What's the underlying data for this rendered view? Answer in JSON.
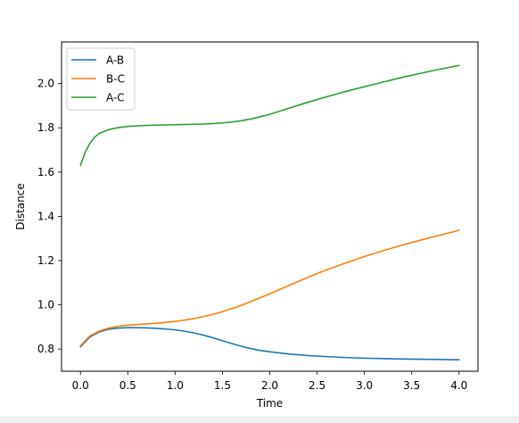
{
  "chart_data": {
    "type": "line",
    "title": "",
    "xlabel": "Time",
    "ylabel": "Distance",
    "xlim": [
      -0.2,
      4.2
    ],
    "ylim": [
      0.7,
      2.188
    ],
    "xticks": [
      "0.0",
      "0.5",
      "1.0",
      "1.5",
      "2.0",
      "2.5",
      "3.0",
      "3.5",
      "4.0"
    ],
    "yticks": [
      "0.8",
      "1.0",
      "1.2",
      "1.4",
      "1.6",
      "1.8",
      "2.0"
    ],
    "grid": false,
    "legend_position": "upper-left",
    "series": [
      {
        "name": "A-B",
        "color": "#1f77b4",
        "x": [
          0.0,
          0.1,
          0.2,
          0.3,
          0.4,
          0.5,
          0.6,
          0.7,
          0.8,
          0.9,
          1.0,
          1.1,
          1.2,
          1.3,
          1.4,
          1.5,
          1.6,
          1.7,
          1.8,
          1.9,
          2.0,
          2.2,
          2.4,
          2.6,
          2.8,
          3.0,
          3.2,
          3.4,
          3.6,
          3.8,
          4.0
        ],
        "values": [
          0.81,
          0.855,
          0.878,
          0.89,
          0.895,
          0.897,
          0.897,
          0.896,
          0.894,
          0.891,
          0.887,
          0.881,
          0.873,
          0.863,
          0.851,
          0.838,
          0.825,
          0.813,
          0.802,
          0.794,
          0.788,
          0.778,
          0.771,
          0.766,
          0.762,
          0.759,
          0.757,
          0.755,
          0.754,
          0.753,
          0.752
        ]
      },
      {
        "name": "B-C",
        "color": "#ff7f0e",
        "x": [
          0.0,
          0.1,
          0.2,
          0.3,
          0.4,
          0.5,
          0.6,
          0.7,
          0.8,
          0.9,
          1.0,
          1.1,
          1.2,
          1.3,
          1.4,
          1.5,
          1.6,
          1.7,
          1.8,
          1.9,
          2.0,
          2.2,
          2.4,
          2.6,
          2.8,
          3.0,
          3.2,
          3.4,
          3.6,
          3.8,
          4.0
        ],
        "values": [
          0.815,
          0.86,
          0.882,
          0.895,
          0.903,
          0.908,
          0.911,
          0.914,
          0.917,
          0.921,
          0.925,
          0.931,
          0.938,
          0.947,
          0.957,
          0.969,
          0.983,
          0.998,
          1.015,
          1.032,
          1.05,
          1.087,
          1.124,
          1.158,
          1.189,
          1.218,
          1.245,
          1.27,
          1.293,
          1.315,
          1.337
        ]
      },
      {
        "name": "A-C",
        "color": "#2ca02c",
        "x": [
          0.0,
          0.05,
          0.1,
          0.15,
          0.2,
          0.3,
          0.4,
          0.5,
          0.6,
          0.7,
          0.8,
          0.9,
          1.0,
          1.1,
          1.2,
          1.3,
          1.4,
          1.5,
          1.6,
          1.7,
          1.8,
          1.9,
          2.0,
          2.2,
          2.4,
          2.6,
          2.8,
          3.0,
          3.2,
          3.4,
          3.6,
          3.8,
          4.0
        ],
        "values": [
          1.63,
          1.69,
          1.73,
          1.758,
          1.775,
          1.792,
          1.801,
          1.806,
          1.809,
          1.811,
          1.812,
          1.813,
          1.814,
          1.815,
          1.816,
          1.817,
          1.819,
          1.822,
          1.826,
          1.832,
          1.84,
          1.85,
          1.861,
          1.888,
          1.915,
          1.94,
          1.964,
          1.986,
          2.007,
          2.028,
          2.047,
          2.065,
          2.082
        ]
      }
    ]
  }
}
